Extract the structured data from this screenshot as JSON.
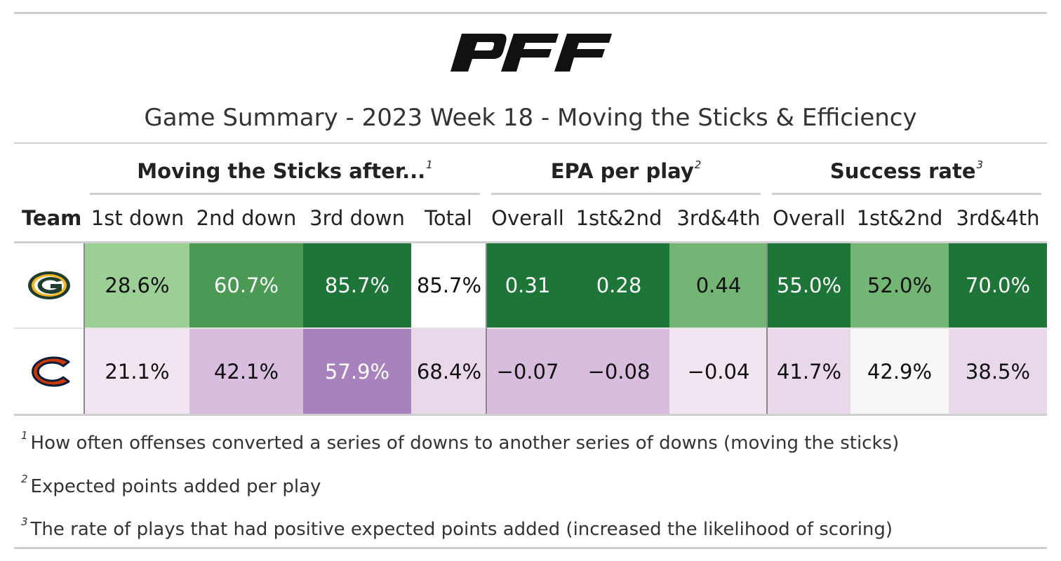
{
  "brand": {
    "logo_text": "PFF"
  },
  "title": "Game Summary - 2023 Week 18 - Moving the Sticks & Efficiency",
  "header": {
    "groups": [
      {
        "label": "Moving the Sticks after...",
        "mark": "1"
      },
      {
        "label": "EPA per play",
        "mark": "2"
      },
      {
        "label": "Success rate",
        "mark": "3"
      }
    ],
    "columns": [
      "Team",
      "1st down",
      "2nd down",
      "3rd down",
      "Total",
      "Overall",
      "1st&2nd",
      "3rd&4th",
      "Overall",
      "1st&2nd",
      "3rd&4th"
    ]
  },
  "chart_data": {
    "type": "table",
    "title": "Game Summary - 2023 Week 18 - Moving the Sticks & Efficiency",
    "columns": [
      "Team",
      "1st down",
      "2nd down",
      "3rd down",
      "Total",
      "Overall",
      "1st&2nd",
      "3rd&4th",
      "Overall",
      "1st&2nd",
      "3rd&4th"
    ],
    "rows": [
      {
        "team_icon": "green-bay-packers-logo-icon",
        "values": [
          "28.6%",
          "60.7%",
          "85.7%",
          "85.7%",
          "0.31",
          "0.28",
          "0.44",
          "55.0%",
          "52.0%",
          "70.0%"
        ],
        "bg": [
          "#9ccf95",
          "#4a9a55",
          "#1e7538",
          "#ffffff",
          "#1e7538",
          "#1e7538",
          "#72b574",
          "#1e7538",
          "#72b574",
          "#1e7538"
        ],
        "fg": [
          "#111111",
          "#ffffff",
          "#ffffff",
          "#111111",
          "#ffffff",
          "#ffffff",
          "#111111",
          "#ffffff",
          "#111111",
          "#ffffff"
        ]
      },
      {
        "team_icon": "chicago-bears-logo-icon",
        "values": [
          "21.1%",
          "42.1%",
          "57.9%",
          "68.4%",
          "−0.07",
          "−0.08",
          "−0.04",
          "41.7%",
          "42.9%",
          "38.5%"
        ],
        "bg": [
          "#f0e5f0",
          "#d8bdde",
          "#a882bd",
          "#e8d8ea",
          "#d8bdde",
          "#d8bdde",
          "#f0e5f0",
          "#e8d8ea",
          "#f7f7f7",
          "#e8d8ea"
        ],
        "fg": [
          "#111111",
          "#111111",
          "#ffffff",
          "#111111",
          "#111111",
          "#111111",
          "#111111",
          "#111111",
          "#111111",
          "#111111"
        ]
      }
    ]
  },
  "footnotes": [
    {
      "mark": "1",
      "text": "How often offenses converted a series of downs to another series of downs (moving the sticks)"
    },
    {
      "mark": "2",
      "text": "Expected points added per play"
    },
    {
      "mark": "3",
      "text": "The rate of plays that had positive expected points added (increased the likelihood of scoring)"
    }
  ]
}
